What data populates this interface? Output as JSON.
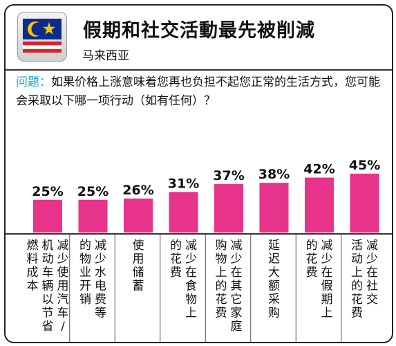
{
  "header": {
    "title": "假期和社交活動最先被削減",
    "country": "马来西亚",
    "flag_icon": "malaysia-flag-icon"
  },
  "question": {
    "label": "问题：",
    "text": "如果价格上涨意味着您再也负担不起您正常的生活方式，您可能会采取以下哪一项行动（如有任何）？"
  },
  "colors": {
    "bar": "#e8338a",
    "question_label": "#1aa3d8"
  },
  "chart_data": {
    "type": "bar",
    "title": "假期和社交活動最先被削減",
    "unit": "%",
    "ylim": [
      0,
      50
    ],
    "values": [
      25,
      25,
      26,
      31,
      37,
      38,
      42,
      45
    ],
    "value_labels": [
      "25%",
      "25%",
      "26%",
      "31%",
      "37%",
      "38%",
      "42%",
      "45%"
    ],
    "categories": [
      [
        "减少使用汽车/",
        "机动车辆以节省",
        "燃料成本"
      ],
      [
        "减少水电费等",
        "的物业开销"
      ],
      [
        "使用储蓄"
      ],
      [
        "减少在食物上",
        "的花费"
      ],
      [
        "减少在其它家庭",
        "购物上的花费"
      ],
      [
        "延迟大额采购"
      ],
      [
        "减少在假期上",
        "的花费"
      ],
      [
        "减少在社交",
        "活动上的花费"
      ]
    ]
  }
}
